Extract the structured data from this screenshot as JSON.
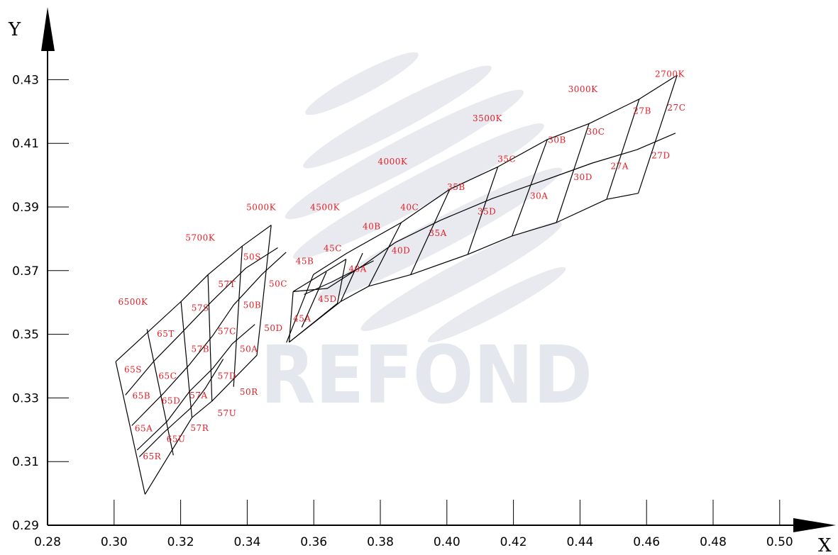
{
  "chart_data": {
    "type": "scatter",
    "title": "",
    "xlabel": "X",
    "ylabel": "Y",
    "xlim": [
      0.28,
      0.51
    ],
    "ylim": [
      0.29,
      0.44
    ],
    "x_ticks": [
      "0.28",
      "0.30",
      "0.32",
      "0.34",
      "0.36",
      "0.38",
      "0.40",
      "0.42",
      "0.44",
      "0.46",
      "0.48",
      "0.50"
    ],
    "y_ticks": [
      "0.29",
      "0.31",
      "0.33",
      "0.35",
      "0.37",
      "0.39",
      "0.41",
      "0.43"
    ],
    "grid": false,
    "watermark": "REFOND",
    "colors": {
      "line": "#000000",
      "label": "#e41e26",
      "watermark": "#e4e7ee"
    },
    "cct_labels": [
      {
        "text": "6500K",
        "x": 0.3057,
        "y": 0.3602
      },
      {
        "text": "5700K",
        "x": 0.3259,
        "y": 0.3803
      },
      {
        "text": "5000K",
        "x": 0.3442,
        "y": 0.3899
      },
      {
        "text": "4500K",
        "x": 0.3634,
        "y": 0.3899
      },
      {
        "text": "4000K",
        "x": 0.3837,
        "y": 0.4043
      },
      {
        "text": "3500K",
        "x": 0.4122,
        "y": 0.4178
      },
      {
        "text": "3000K",
        "x": 0.4409,
        "y": 0.427
      },
      {
        "text": "2700K",
        "x": 0.467,
        "y": 0.4318
      }
    ],
    "bins": [
      {
        "name": "65S",
        "x": 0.3057,
        "y": 0.3389
      },
      {
        "name": "65T",
        "x": 0.3155,
        "y": 0.3501
      },
      {
        "name": "65C",
        "x": 0.3161,
        "y": 0.3369
      },
      {
        "name": "65B",
        "x": 0.3082,
        "y": 0.3306
      },
      {
        "name": "65D",
        "x": 0.3171,
        "y": 0.3291
      },
      {
        "name": "65A",
        "x": 0.3089,
        "y": 0.3204
      },
      {
        "name": "65U",
        "x": 0.3186,
        "y": 0.3171
      },
      {
        "name": "65R",
        "x": 0.3114,
        "y": 0.3116
      },
      {
        "name": "57S",
        "x": 0.3259,
        "y": 0.3583
      },
      {
        "name": "57B",
        "x": 0.3259,
        "y": 0.3453
      },
      {
        "name": "57A",
        "x": 0.3254,
        "y": 0.3308
      },
      {
        "name": "57R",
        "x": 0.3257,
        "y": 0.3205
      },
      {
        "name": "57T",
        "x": 0.3339,
        "y": 0.3657
      },
      {
        "name": "57C",
        "x": 0.3339,
        "y": 0.3509
      },
      {
        "name": "57D",
        "x": 0.3339,
        "y": 0.3369
      },
      {
        "name": "57U",
        "x": 0.3339,
        "y": 0.3252
      },
      {
        "name": "50S",
        "x": 0.3415,
        "y": 0.3743
      },
      {
        "name": "50B",
        "x": 0.3415,
        "y": 0.3592
      },
      {
        "name": "50A",
        "x": 0.3405,
        "y": 0.3454
      },
      {
        "name": "50R",
        "x": 0.3405,
        "y": 0.3319
      },
      {
        "name": "50C",
        "x": 0.3493,
        "y": 0.3658
      },
      {
        "name": "50D",
        "x": 0.3479,
        "y": 0.3519
      },
      {
        "name": "45B",
        "x": 0.3573,
        "y": 0.373
      },
      {
        "name": "45A",
        "x": 0.3565,
        "y": 0.3549
      },
      {
        "name": "45C",
        "x": 0.3657,
        "y": 0.377
      },
      {
        "name": "45D",
        "x": 0.3641,
        "y": 0.361
      },
      {
        "name": "40B",
        "x": 0.3774,
        "y": 0.3839
      },
      {
        "name": "40A",
        "x": 0.3732,
        "y": 0.3705
      },
      {
        "name": "40C",
        "x": 0.3888,
        "y": 0.3899
      },
      {
        "name": "40D",
        "x": 0.3862,
        "y": 0.3763
      },
      {
        "name": "35B",
        "x": 0.4028,
        "y": 0.3962
      },
      {
        "name": "35A",
        "x": 0.3973,
        "y": 0.3818
      },
      {
        "name": "35C",
        "x": 0.418,
        "y": 0.405
      },
      {
        "name": "35D",
        "x": 0.412,
        "y": 0.3885
      },
      {
        "name": "30B",
        "x": 0.4331,
        "y": 0.411
      },
      {
        "name": "30A",
        "x": 0.4277,
        "y": 0.3934
      },
      {
        "name": "30C",
        "x": 0.4447,
        "y": 0.4136
      },
      {
        "name": "30D",
        "x": 0.4409,
        "y": 0.3993
      },
      {
        "name": "27B",
        "x": 0.4587,
        "y": 0.4202
      },
      {
        "name": "27A",
        "x": 0.4519,
        "y": 0.4028
      },
      {
        "name": "27C",
        "x": 0.469,
        "y": 0.4212
      },
      {
        "name": "27D",
        "x": 0.4643,
        "y": 0.4061
      }
    ],
    "grid_lines": [
      [
        [
          0.3005,
          0.3414
        ],
        [
          0.3093,
          0.2997
        ]
      ],
      [
        [
          0.3005,
          0.3414
        ],
        [
          0.3201,
          0.3603
        ],
        [
          0.3282,
          0.3687
        ],
        [
          0.3385,
          0.3777
        ],
        [
          0.3472,
          0.3843
        ]
      ],
      [
        [
          0.3099,
          0.3516
        ],
        [
          0.3178,
          0.312
        ]
      ],
      [
        [
          0.3201,
          0.3603
        ],
        [
          0.3234,
          0.3238
        ]
      ],
      [
        [
          0.3282,
          0.3687
        ],
        [
          0.3294,
          0.329
        ]
      ],
      [
        [
          0.3385,
          0.3777
        ],
        [
          0.3359,
          0.3335
        ]
      ],
      [
        [
          0.3472,
          0.3843
        ],
        [
          0.3429,
          0.3434
        ]
      ],
      [
        [
          0.3093,
          0.2997
        ],
        [
          0.3234,
          0.3238
        ],
        [
          0.3294,
          0.329
        ],
        [
          0.3429,
          0.3434
        ]
      ],
      [
        [
          0.3034,
          0.3309
        ],
        [
          0.312,
          0.3416
        ],
        [
          0.3196,
          0.3497
        ],
        [
          0.3294,
          0.3604
        ],
        [
          0.3396,
          0.3708
        ],
        [
          0.3492,
          0.3772
        ]
      ],
      [
        [
          0.3053,
          0.3213
        ],
        [
          0.3148,
          0.3314
        ],
        [
          0.3225,
          0.3403
        ],
        [
          0.3296,
          0.3495
        ],
        [
          0.3359,
          0.3592
        ],
        [
          0.3445,
          0.3689
        ],
        [
          0.3517,
          0.3758
        ]
      ],
      [
        [
          0.3069,
          0.3136
        ],
        [
          0.3159,
          0.3226
        ],
        [
          0.3228,
          0.3322
        ],
        [
          0.3296,
          0.3392
        ],
        [
          0.3355,
          0.347
        ],
        [
          0.3423,
          0.3531
        ]
      ],
      [
        [
          0.3076,
          0.3115
        ],
        [
          0.3148,
          0.319
        ],
        [
          0.3228,
          0.3266
        ],
        [
          0.3274,
          0.333
        ],
        [
          0.3328,
          0.3422
        ]
      ],
      [
        [
          0.3538,
          0.3634
        ],
        [
          0.3526,
          0.3475
        ]
      ],
      [
        [
          0.3697,
          0.3736
        ],
        [
          0.3671,
          0.3597
        ]
      ],
      [
        [
          0.3538,
          0.3634
        ],
        [
          0.3697,
          0.3736
        ]
      ],
      [
        [
          0.3599,
          0.3688
        ],
        [
          0.3518,
          0.3474
        ]
      ],
      [
        [
          0.3526,
          0.3475
        ],
        [
          0.3671,
          0.3597
        ]
      ],
      [
        [
          0.3599,
          0.3688
        ],
        [
          0.3698,
          0.3754
        ],
        [
          0.3863,
          0.3851
        ],
        [
          0.4009,
          0.3956
        ],
        [
          0.4153,
          0.4026
        ],
        [
          0.4302,
          0.4112
        ],
        [
          0.4427,
          0.4162
        ],
        [
          0.4578,
          0.4239
        ],
        [
          0.4692,
          0.4314
        ]
      ],
      [
        [
          0.3638,
          0.3696
        ],
        [
          0.3564,
          0.3522
        ]
      ],
      [
        [
          0.3747,
          0.3755
        ],
        [
          0.3681,
          0.3603
        ]
      ],
      [
        [
          0.3863,
          0.3851
        ],
        [
          0.3765,
          0.3651
        ]
      ],
      [
        [
          0.4009,
          0.3956
        ],
        [
          0.3891,
          0.3687
        ]
      ],
      [
        [
          0.4153,
          0.4026
        ],
        [
          0.4063,
          0.3751
        ]
      ],
      [
        [
          0.4302,
          0.4112
        ],
        [
          0.4196,
          0.3809
        ]
      ],
      [
        [
          0.4427,
          0.4162
        ],
        [
          0.4329,
          0.3851
        ]
      ],
      [
        [
          0.4578,
          0.4239
        ],
        [
          0.448,
          0.3924
        ]
      ],
      [
        [
          0.4692,
          0.4314
        ],
        [
          0.4575,
          0.3943
        ]
      ],
      [
        [
          0.3526,
          0.3475
        ],
        [
          0.3681,
          0.3603
        ],
        [
          0.3765,
          0.3651
        ],
        [
          0.3891,
          0.3687
        ],
        [
          0.4063,
          0.3751
        ],
        [
          0.4196,
          0.3809
        ],
        [
          0.4329,
          0.3851
        ],
        [
          0.448,
          0.3924
        ],
        [
          0.4575,
          0.3943
        ]
      ],
      [
        [
          0.3538,
          0.3634
        ],
        [
          0.3641,
          0.3644
        ],
        [
          0.3749,
          0.3717
        ],
        [
          0.3846,
          0.3789
        ],
        [
          0.398,
          0.3858
        ],
        [
          0.4137,
          0.3927
        ],
        [
          0.4307,
          0.3989
        ],
        [
          0.4437,
          0.4038
        ],
        [
          0.4571,
          0.408
        ],
        [
          0.4687,
          0.4132
        ]
      ],
      [
        [
          0.3571,
          0.3625
        ],
        [
          0.3653,
          0.3664
        ],
        [
          0.378,
          0.3731
        ]
      ]
    ]
  }
}
